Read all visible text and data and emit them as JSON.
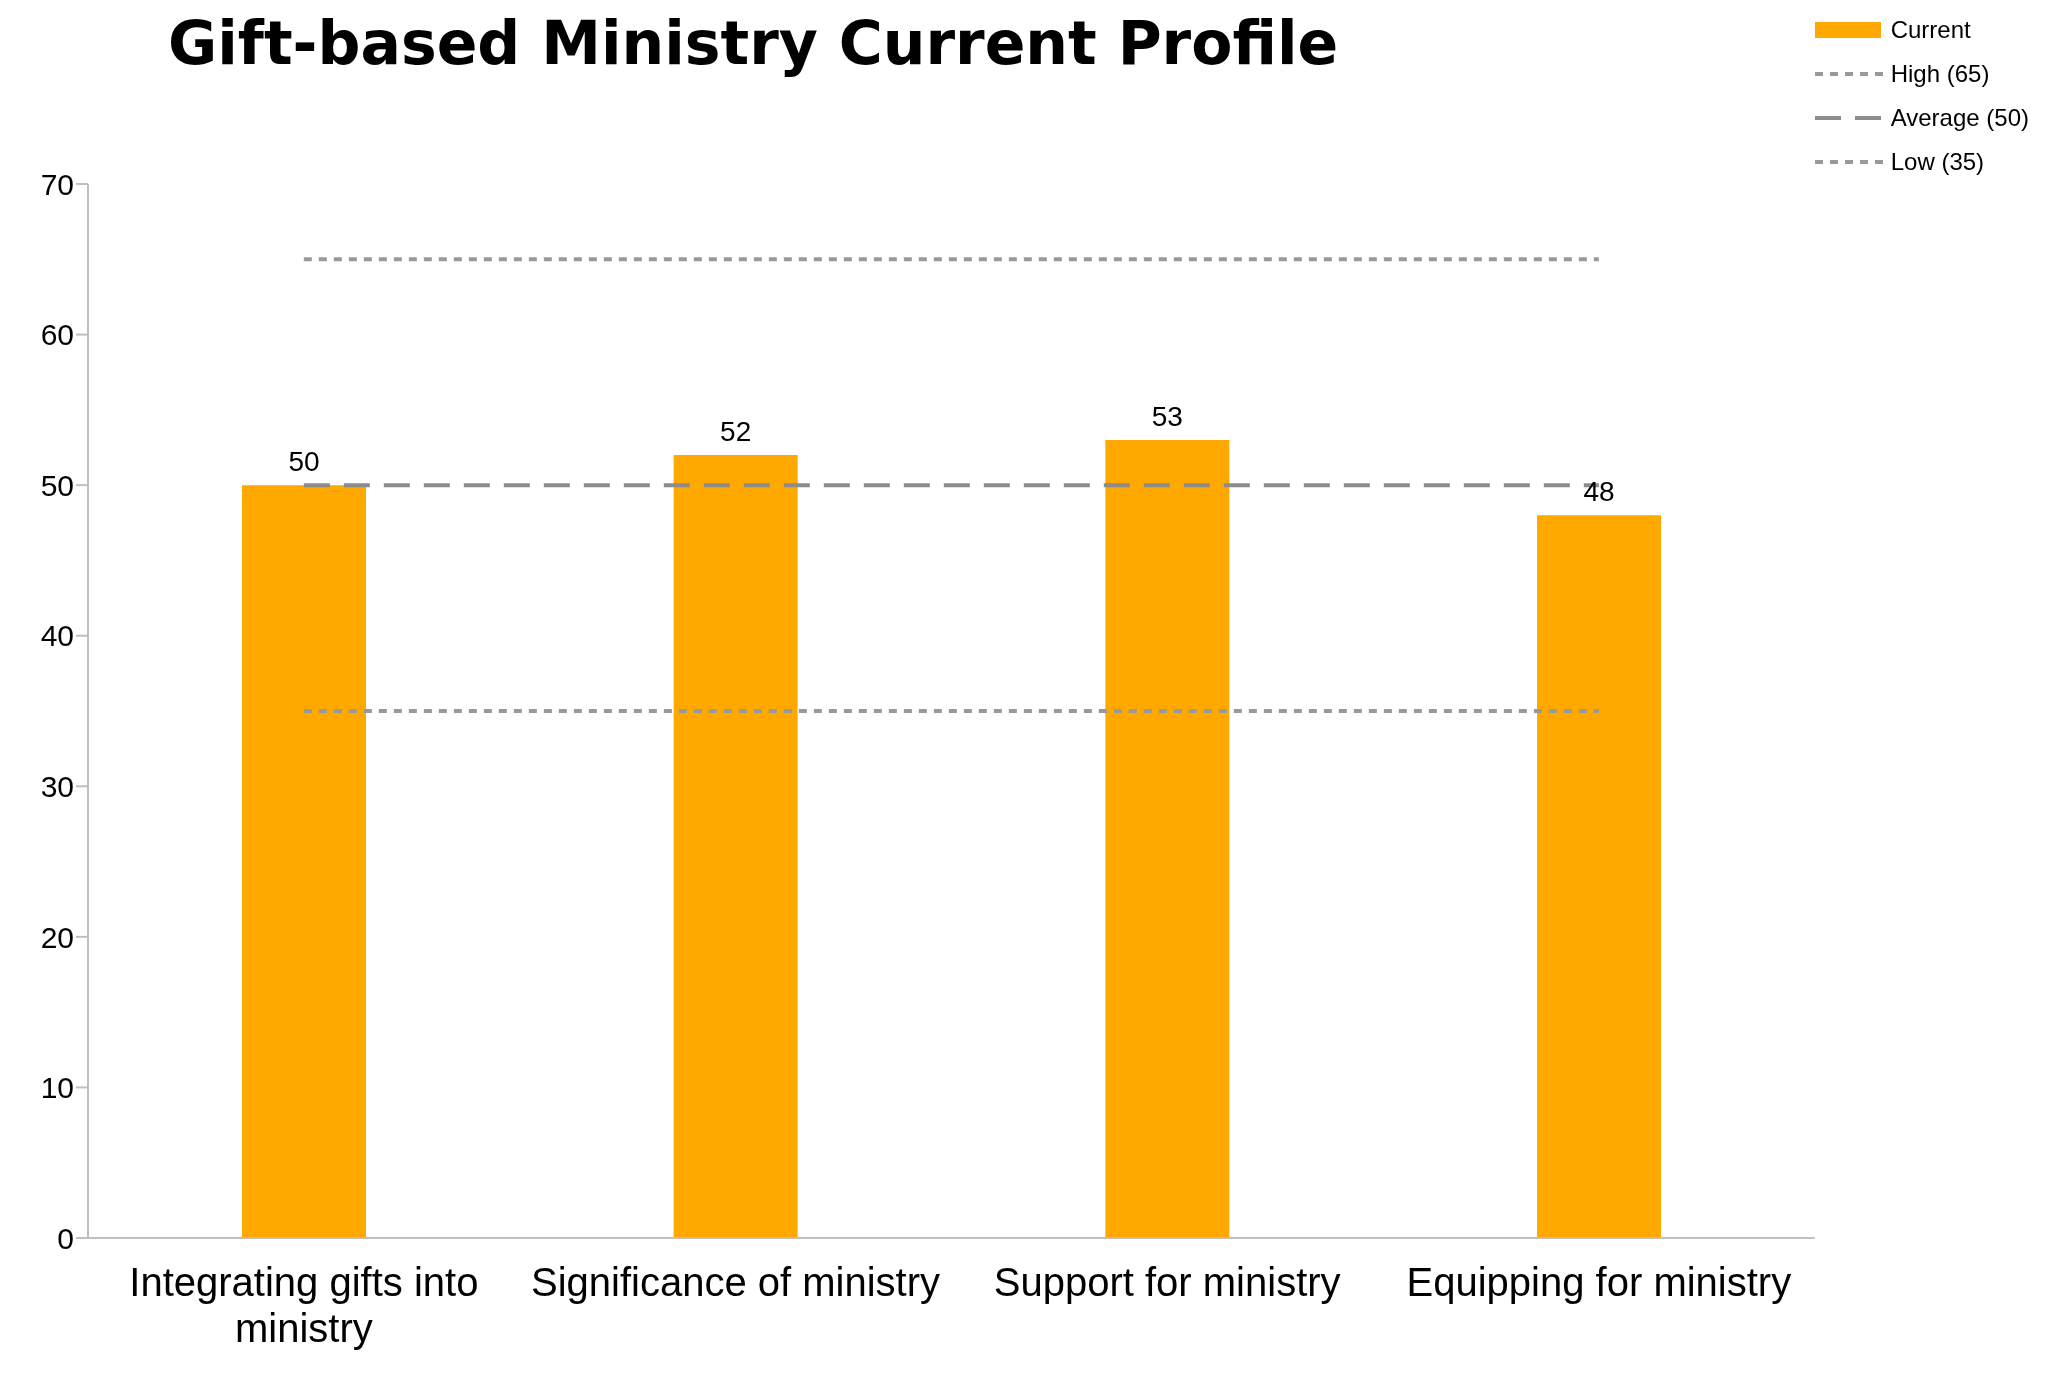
{
  "chart_data": {
    "type": "bar",
    "title": "Gift-based Ministry Current Profile",
    "categories": [
      "Integrating gifts into ministry",
      "Significance of ministry",
      "Support for ministry",
      "Equipping for ministry"
    ],
    "series": [
      {
        "name": "Current",
        "color": "#ffa800",
        "values": [
          50,
          52,
          53,
          48
        ],
        "value_labels": [
          "50",
          "52",
          "53",
          "48"
        ]
      },
      {
        "name": "High (65)",
        "type": "line",
        "color": "#999999",
        "line_style": "dotted",
        "values": [
          65,
          65,
          65,
          65
        ]
      },
      {
        "name": "Average (50)",
        "type": "line",
        "color": "#8c8c8c",
        "line_style": "dashed",
        "values": [
          50,
          50,
          50,
          50
        ]
      },
      {
        "name": "Low (35)",
        "type": "line",
        "color": "#999999",
        "line_style": "dotted",
        "values": [
          35,
          35,
          35,
          35
        ]
      }
    ],
    "ylim": [
      0,
      70
    ],
    "yticks": [
      0,
      10,
      20,
      30,
      40,
      50,
      60,
      70
    ],
    "grid": false,
    "legend": "top right"
  }
}
